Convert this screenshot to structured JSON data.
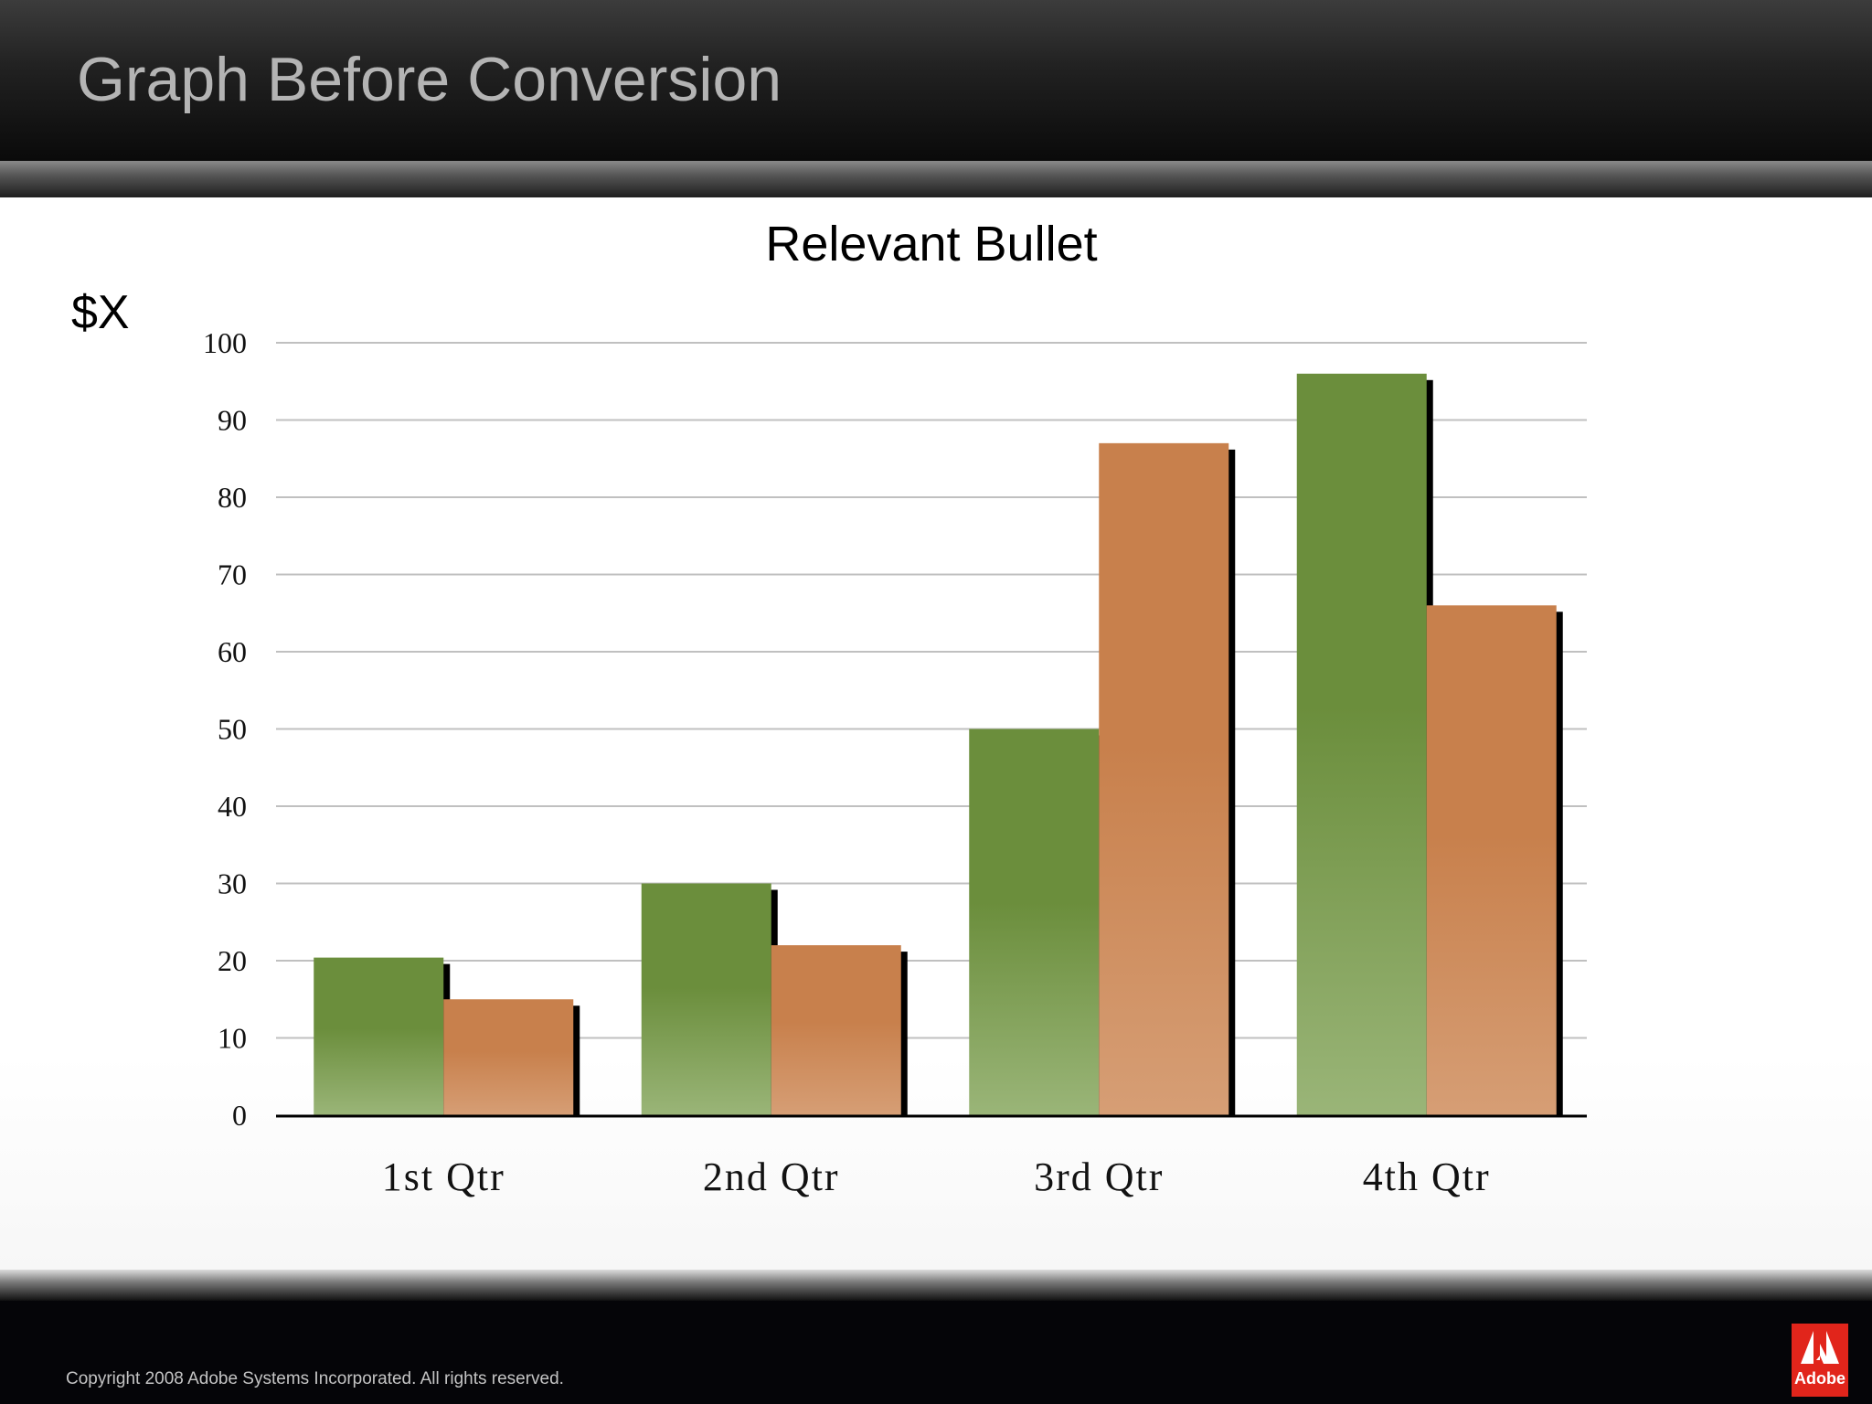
{
  "slide": {
    "title": "Graph Before Conversion",
    "copyright": "Copyright 2008 Adobe Systems Incorporated.  All rights reserved.",
    "logo_text": "Adobe",
    "logo_icon": "adobe-logo-icon"
  },
  "chart_data": {
    "type": "bar",
    "title": "Relevant Bullet",
    "ylabel": "$X",
    "xlabel": "",
    "categories": [
      "1st Qtr",
      "2nd Qtr",
      "3rd Qtr",
      "4th Qtr"
    ],
    "series": [
      {
        "values": [
          20.4,
          30,
          50,
          96
        ],
        "color": "#6b8e3c",
        "color_light": "#9ab578"
      },
      {
        "values": [
          15,
          22,
          87,
          66
        ],
        "color": "#c8804c",
        "color_light": "#d69e75"
      }
    ],
    "ylim": [
      0,
      100
    ],
    "yticks": [
      0,
      10,
      20,
      30,
      40,
      50,
      60,
      70,
      80,
      90,
      100
    ],
    "grid": true,
    "legend": "none"
  },
  "colors": {
    "header_text": "#b4b4b4",
    "gridline": "#c0c0c0",
    "bar_shadow": "#000000"
  }
}
